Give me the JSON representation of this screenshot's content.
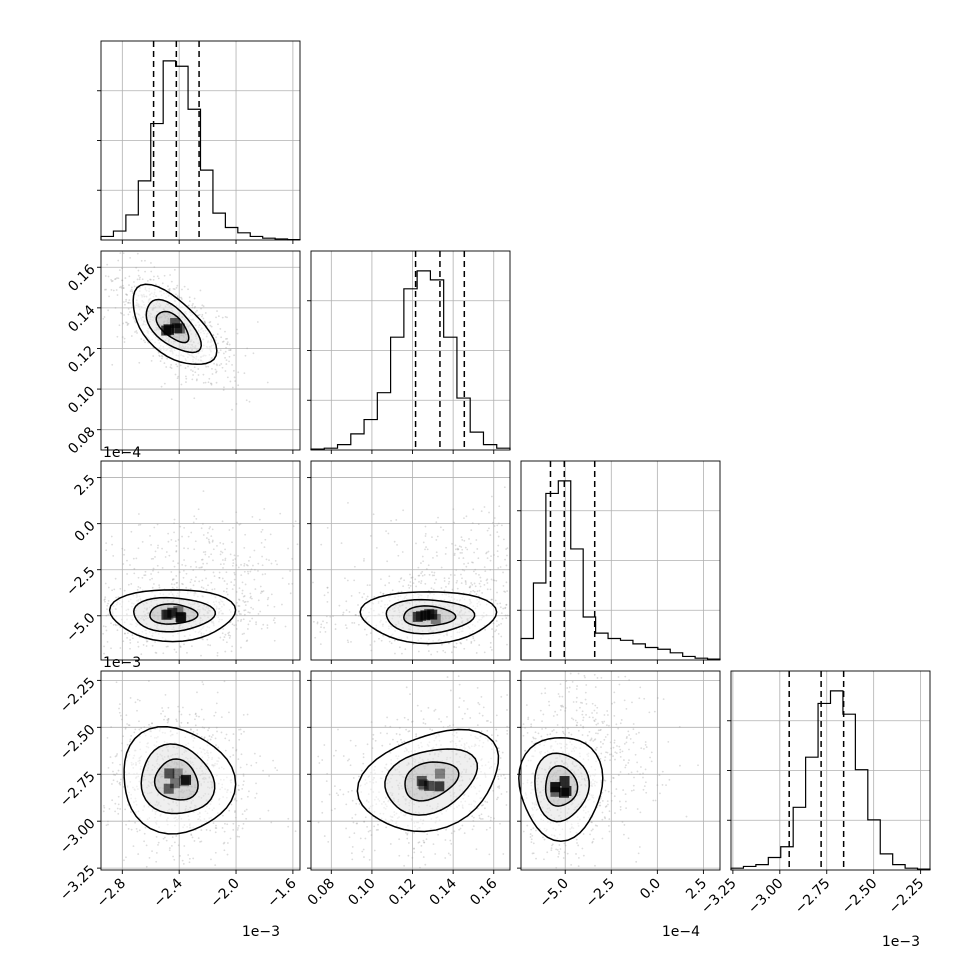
{
  "chart_data": {
    "type": "corner",
    "params": [
      {
        "range": [
          -2.95,
          -1.55
        ],
        "ticks": [
          -2.8,
          -2.4,
          -2.0,
          -1.6
        ],
        "tick_labels": [
          "−2.8",
          "−2.4",
          "−2.0",
          "−1.6"
        ],
        "offset": "1e−3",
        "quantiles": [
          -2.58,
          -2.42,
          -2.26
        ],
        "hist_counts": [
          2,
          5,
          14,
          33,
          65,
          100,
          97,
          73,
          39,
          15,
          7,
          4,
          2,
          1,
          0.6,
          0.2
        ]
      },
      {
        "range": [
          0.07,
          0.168
        ],
        "ticks": [
          0.08,
          0.1,
          0.12,
          0.14,
          0.16
        ],
        "tick_labels": [
          "0.08",
          "0.10",
          "0.12",
          "0.14",
          "0.16"
        ],
        "offset": "",
        "quantiles": [
          0.1215,
          0.1335,
          0.1455
        ],
        "hist_counts": [
          0.5,
          1,
          3,
          9,
          17,
          32,
          63,
          90,
          100,
          95,
          63,
          29,
          10,
          3,
          1
        ]
      },
      {
        "range": [
          -7.4,
          3.4
        ],
        "ticks": [
          -5.0,
          -2.5,
          0.0,
          2.5
        ],
        "tick_labels": [
          "−5.0",
          "−2.5",
          "0.0",
          "2.5"
        ],
        "offset": "1e−4",
        "quantiles": [
          -5.8,
          -5.05,
          -3.4
        ],
        "hist_counts": [
          12,
          43,
          93,
          100,
          62,
          24,
          15,
          12,
          11,
          9,
          7,
          6,
          4,
          2,
          1,
          0.5
        ]
      },
      {
        "range": [
          -3.26,
          -2.2
        ],
        "ticks": [
          -3.25,
          -3.0,
          -2.75,
          -2.5,
          -2.25
        ],
        "tick_labels": [
          "−3.25",
          "−3.00",
          "−2.75",
          "−2.50",
          "−2.25"
        ],
        "offset": "1e−3",
        "quantiles": [
          -2.95,
          -2.78,
          -2.66
        ],
        "hist_counts": [
          1,
          2,
          3,
          7,
          13,
          35,
          63,
          93,
          100,
          87,
          56,
          28,
          9,
          3,
          1,
          0.5
        ]
      }
    ],
    "left_axis_tick_labels": {
      "row1": [
        "0.08",
        "0.10",
        "0.12",
        "0.14",
        "0.16"
      ],
      "row2": [
        "−5.0",
        "−2.5",
        "0.0",
        "2.5"
      ],
      "row3": [
        "−3.25",
        "−3.00",
        "−2.75",
        "−2.50",
        "−2.25"
      ]
    },
    "row_offsets": [
      "",
      "1e−4",
      "1e−3"
    ],
    "grid": true,
    "colors": {
      "line": "#000000",
      "scatter": "#9a9a9a",
      "grid": "#b0b0b0"
    }
  }
}
